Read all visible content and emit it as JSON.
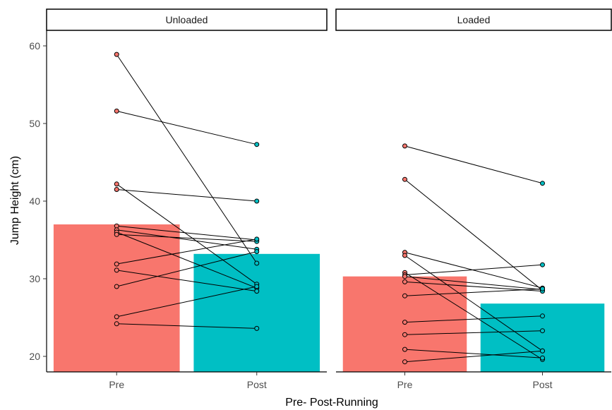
{
  "chart_data": {
    "type": "bar",
    "categories": [
      "Pre",
      "Post"
    ],
    "xlabel": "Pre- Post-Running",
    "ylabel": "Jump Height (cm)",
    "ylim": [
      18,
      62
    ],
    "yticks": [
      20,
      30,
      40,
      50,
      60
    ],
    "grid": false,
    "legend": "none",
    "colors": {
      "Pre": "#F8766D",
      "Post": "#00BFC4",
      "line": "#000000"
    },
    "panels": [
      {
        "label": "Unloaded",
        "bar_values": [
          37.0,
          33.2
        ],
        "pairs": [
          [
            58.9,
            32.0
          ],
          [
            51.6,
            47.3
          ],
          [
            42.2,
            29.3
          ],
          [
            41.5,
            40.0
          ],
          [
            36.8,
            35.0
          ],
          [
            36.3,
            33.8
          ],
          [
            36.0,
            28.8
          ],
          [
            35.7,
            34.8
          ],
          [
            31.9,
            35.1
          ],
          [
            31.1,
            28.4
          ],
          [
            29.0,
            33.5
          ],
          [
            25.1,
            29.0
          ],
          [
            24.2,
            23.6
          ]
        ]
      },
      {
        "label": "Loaded",
        "bar_values": [
          30.3,
          26.8
        ],
        "pairs": [
          [
            47.1,
            42.3
          ],
          [
            42.8,
            28.5
          ],
          [
            33.4,
            28.8
          ],
          [
            33.0,
            20.7
          ],
          [
            30.8,
            19.6
          ],
          [
            30.5,
            31.8
          ],
          [
            30.3,
            28.6
          ],
          [
            29.6,
            28.4
          ],
          [
            27.8,
            28.7
          ],
          [
            24.4,
            25.2
          ],
          [
            22.8,
            23.3
          ],
          [
            20.9,
            19.8
          ],
          [
            19.3,
            20.7
          ]
        ]
      }
    ]
  }
}
